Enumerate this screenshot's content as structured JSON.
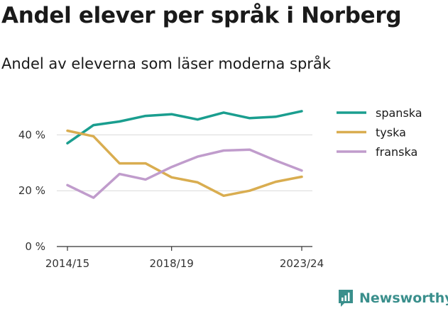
{
  "title": "Andel elever per språk i Norberg",
  "subtitle": "Andel av eleverna som läser moderna språk",
  "brand": {
    "name": "Newsworthy",
    "icon": "newsworthy-logo-icon",
    "color": "#3a8f8c"
  },
  "chart_data": {
    "type": "line",
    "x": [
      "2014/15",
      "2015/16",
      "2016/17",
      "2017/18",
      "2018/19",
      "2019/20",
      "2020/21",
      "2021/22",
      "2022/23",
      "2023/24"
    ],
    "x_tick_labels": [
      "2014/15",
      "2018/19",
      "2023/24"
    ],
    "y_ticks": [
      {
        "value": 0,
        "label": "0 %"
      },
      {
        "value": 20,
        "label": "20 %"
      },
      {
        "value": 40,
        "label": "40 %"
      }
    ],
    "ylim": [
      0,
      50
    ],
    "grid": true,
    "legend_position": "right",
    "series": [
      {
        "name": "spanska",
        "color": "#1a9e8f",
        "values": [
          37,
          43.5,
          44.8,
          46.8,
          47.4,
          45.5,
          48,
          46,
          46.5,
          48.5
        ]
      },
      {
        "name": "tyska",
        "color": "#d9ad50",
        "values": [
          41.5,
          39.5,
          29.8,
          29.8,
          24.8,
          23,
          18.2,
          20,
          23.2,
          25
        ]
      },
      {
        "name": "franska",
        "color": "#c09ccc",
        "values": [
          22,
          17.5,
          26,
          24,
          28.5,
          32.2,
          34.4,
          34.7,
          30.8,
          27.2
        ]
      }
    ]
  }
}
